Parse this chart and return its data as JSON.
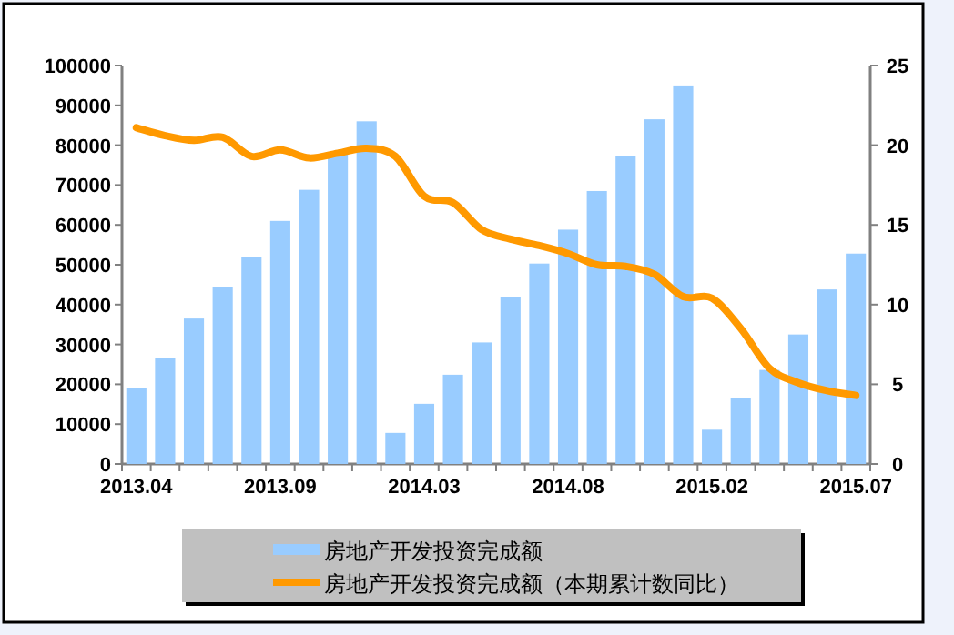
{
  "chart_data": {
    "type": "bar",
    "categories": [
      "2013.04",
      null,
      null,
      null,
      null,
      "2013.09",
      null,
      null,
      null,
      null,
      "2014.03",
      null,
      null,
      null,
      null,
      "2014.08",
      null,
      null,
      null,
      null,
      "2015.02",
      null,
      null,
      null,
      null,
      "2015.07"
    ],
    "series": [
      {
        "name": "房地产开发投资完成额",
        "color": "#99ccff",
        "values": [
          19000,
          26500,
          36500,
          44300,
          52000,
          61000,
          68800,
          78000,
          86000,
          7800,
          15100,
          22400,
          30500,
          42000,
          50300,
          58800,
          68500,
          77200,
          86500,
          95000,
          8600,
          16600,
          23600,
          32500,
          43800,
          52800
        ]
      },
      {
        "name": "房地产开发投资完成额（本期累计数同比）",
        "type": "line",
        "axis": "y2",
        "color": "#ff9900",
        "values": [
          21.1,
          20.6,
          20.3,
          20.5,
          19.3,
          19.7,
          19.2,
          19.5,
          19.8,
          19.3,
          16.8,
          16.4,
          14.7,
          14.1,
          13.7,
          13.2,
          12.5,
          12.4,
          11.9,
          10.5,
          10.4,
          8.5,
          6.0,
          5.1,
          4.6,
          4.3
        ]
      }
    ],
    "ylim": [
      0,
      100000
    ],
    "yticks": [
      0,
      10000,
      20000,
      30000,
      40000,
      50000,
      60000,
      70000,
      80000,
      90000,
      100000
    ],
    "y2lim": [
      0,
      25
    ],
    "y2ticks": [
      0,
      5,
      10,
      15,
      20,
      25
    ],
    "legend": "bottom"
  }
}
